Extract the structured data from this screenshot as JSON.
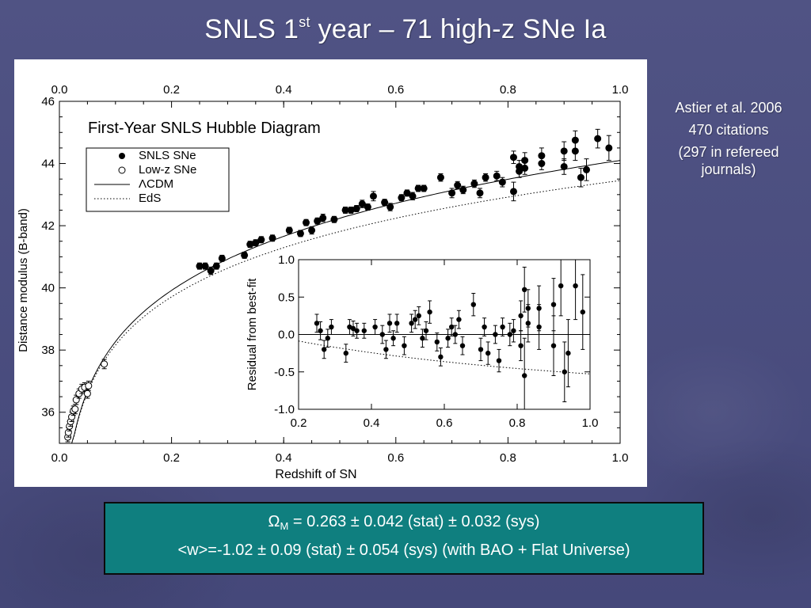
{
  "slide": {
    "title_main": "SNLS 1",
    "title_sup": "st",
    "title_rest": " year – 71 high-z SNe Ia"
  },
  "citation": {
    "line1": "Astier et al. 2006",
    "line2": "470 citations",
    "line3": "(297 in refereed journals)"
  },
  "results": {
    "omega_symbol": "Ω",
    "omega_sub": "M",
    "omega_value": " = 0.263 ± 0.042 (stat) ± 0.032 (sys)",
    "w_line": "<w>=-1.02 ± 0.09 (stat) ± 0.054 (sys) (with BAO + Flat Universe)"
  },
  "colors": {
    "background": "#4a4d80",
    "result_box": "#0f7f7f",
    "marker": "#000000"
  },
  "chart_data": [
    {
      "type": "scatter",
      "title": "First-Year SNLS Hubble Diagram",
      "xlabel": "Redshift of SN",
      "ylabel": "Distance modulus (B-band)",
      "xlim": [
        0.0,
        1.0
      ],
      "ylim": [
        35,
        46
      ],
      "xticks": [
        "0.0",
        "0.2",
        "0.4",
        "0.6",
        "0.8",
        "1.0"
      ],
      "yticks": [
        "36",
        "38",
        "40",
        "42",
        "44",
        "46"
      ],
      "legend_position": "top-left",
      "legend": [
        "SNLS SNe",
        "Low-z SNe",
        "ΛCDM",
        "EdS"
      ],
      "series": [
        {
          "name": "SNLS SNe",
          "marker": "filled-circle",
          "points": [
            [
              0.25,
              40.7,
              0.1
            ],
            [
              0.26,
              40.7,
              0.1
            ],
            [
              0.27,
              40.55,
              0.12
            ],
            [
              0.28,
              40.7,
              0.1
            ],
            [
              0.29,
              40.95,
              0.1
            ],
            [
              0.33,
              41.05,
              0.1
            ],
            [
              0.34,
              41.4,
              0.1
            ],
            [
              0.35,
              41.45,
              0.1
            ],
            [
              0.36,
              41.55,
              0.1
            ],
            [
              0.38,
              41.6,
              0.1
            ],
            [
              0.41,
              41.85,
              0.1
            ],
            [
              0.43,
              41.75,
              0.1
            ],
            [
              0.44,
              42.1,
              0.1
            ],
            [
              0.45,
              41.85,
              0.12
            ],
            [
              0.46,
              42.15,
              0.1
            ],
            [
              0.47,
              42.25,
              0.12
            ],
            [
              0.49,
              42.2,
              0.1
            ],
            [
              0.51,
              42.5,
              0.1
            ],
            [
              0.52,
              42.5,
              0.1
            ],
            [
              0.53,
              42.55,
              0.1
            ],
            [
              0.54,
              42.7,
              0.12
            ],
            [
              0.55,
              42.6,
              0.1
            ],
            [
              0.56,
              42.95,
              0.15
            ],
            [
              0.58,
              42.75,
              0.1
            ],
            [
              0.59,
              42.6,
              0.12
            ],
            [
              0.61,
              42.9,
              0.1
            ],
            [
              0.62,
              43.05,
              0.1
            ],
            [
              0.63,
              42.95,
              0.12
            ],
            [
              0.64,
              43.2,
              0.1
            ],
            [
              0.65,
              43.2,
              0.1
            ],
            [
              0.68,
              43.55,
              0.12
            ],
            [
              0.7,
              43.05,
              0.15
            ],
            [
              0.71,
              43.3,
              0.12
            ],
            [
              0.72,
              43.15,
              0.12
            ],
            [
              0.74,
              43.35,
              0.12
            ],
            [
              0.75,
              43.05,
              0.15
            ],
            [
              0.76,
              43.55,
              0.12
            ],
            [
              0.78,
              43.6,
              0.15
            ],
            [
              0.79,
              43.4,
              0.15
            ],
            [
              0.81,
              43.1,
              0.3
            ],
            [
              0.81,
              44.2,
              0.2
            ],
            [
              0.82,
              43.9,
              0.2
            ],
            [
              0.82,
              43.75,
              0.2
            ],
            [
              0.83,
              43.85,
              0.2
            ],
            [
              0.83,
              44.1,
              0.25
            ],
            [
              0.86,
              44.0,
              0.2
            ],
            [
              0.86,
              44.25,
              0.25
            ],
            [
              0.9,
              43.9,
              0.25
            ],
            [
              0.9,
              44.4,
              0.3
            ],
            [
              0.92,
              44.75,
              0.3
            ],
            [
              0.92,
              44.4,
              0.3
            ],
            [
              0.93,
              43.55,
              0.3
            ],
            [
              0.94,
              43.8,
              0.35
            ],
            [
              0.96,
              44.8,
              0.3
            ],
            [
              0.98,
              44.5,
              0.4
            ]
          ]
        },
        {
          "name": "Low-z SNe",
          "marker": "open-circle",
          "points": [
            [
              0.015,
              35.2,
              0.15
            ],
            [
              0.016,
              35.35,
              0.15
            ],
            [
              0.018,
              35.55,
              0.15
            ],
            [
              0.02,
              35.7,
              0.15
            ],
            [
              0.022,
              35.85,
              0.15
            ],
            [
              0.025,
              36.05,
              0.15
            ],
            [
              0.028,
              36.1,
              0.15
            ],
            [
              0.03,
              36.4,
              0.15
            ],
            [
              0.035,
              36.6,
              0.15
            ],
            [
              0.04,
              36.75,
              0.15
            ],
            [
              0.045,
              36.8,
              0.15
            ],
            [
              0.05,
              36.6,
              0.15
            ],
            [
              0.052,
              36.85,
              0.15
            ],
            [
              0.08,
              37.55,
              0.15
            ]
          ]
        }
      ],
      "curves": [
        {
          "name": "ΛCDM",
          "style": "solid",
          "omega_m": 0.263,
          "omega_l": 0.737
        },
        {
          "name": "EdS",
          "style": "dotted",
          "omega_m": 1.0,
          "omega_l": 0.0
        }
      ]
    },
    {
      "type": "scatter",
      "title": "",
      "xlabel": "",
      "ylabel": "Residual from best-fit",
      "xlim": [
        0.2,
        1.0
      ],
      "ylim": [
        -1.0,
        1.0
      ],
      "xticks": [
        "0.2",
        "0.4",
        "0.6",
        "0.8",
        "1.0"
      ],
      "yticks": [
        "-1.0",
        "-0.5",
        "0.0",
        "0.5",
        "1.0"
      ],
      "series": [
        {
          "name": "SNLS SNe",
          "marker": "filled-circle",
          "points": [
            [
              0.25,
              0.15,
              0.12
            ],
            [
              0.26,
              0.05,
              0.12
            ],
            [
              0.27,
              -0.2,
              0.12
            ],
            [
              0.28,
              -0.05,
              0.12
            ],
            [
              0.29,
              0.1,
              0.1
            ],
            [
              0.33,
              -0.25,
              0.12
            ],
            [
              0.34,
              0.1,
              0.1
            ],
            [
              0.35,
              0.08,
              0.1
            ],
            [
              0.36,
              0.05,
              0.1
            ],
            [
              0.38,
              0.05,
              0.1
            ],
            [
              0.41,
              0.1,
              0.1
            ],
            [
              0.43,
              0.0,
              0.12
            ],
            [
              0.44,
              -0.2,
              0.12
            ],
            [
              0.45,
              0.15,
              0.12
            ],
            [
              0.46,
              -0.05,
              0.1
            ],
            [
              0.47,
              0.15,
              0.12
            ],
            [
              0.49,
              -0.15,
              0.12
            ],
            [
              0.51,
              0.15,
              0.12
            ],
            [
              0.52,
              0.2,
              0.12
            ],
            [
              0.53,
              0.25,
              0.12
            ],
            [
              0.54,
              -0.05,
              0.12
            ],
            [
              0.55,
              0.05,
              0.12
            ],
            [
              0.56,
              0.3,
              0.15
            ],
            [
              0.58,
              -0.1,
              0.12
            ],
            [
              0.59,
              -0.3,
              0.12
            ],
            [
              0.61,
              -0.05,
              0.12
            ],
            [
              0.62,
              0.1,
              0.12
            ],
            [
              0.63,
              0.0,
              0.12
            ],
            [
              0.64,
              0.2,
              0.12
            ],
            [
              0.65,
              -0.15,
              0.12
            ],
            [
              0.68,
              0.4,
              0.15
            ],
            [
              0.7,
              -0.2,
              0.15
            ],
            [
              0.71,
              0.1,
              0.12
            ],
            [
              0.72,
              -0.25,
              0.15
            ],
            [
              0.74,
              0.0,
              0.12
            ],
            [
              0.75,
              -0.35,
              0.15
            ],
            [
              0.76,
              0.1,
              0.12
            ],
            [
              0.78,
              0.0,
              0.15
            ],
            [
              0.79,
              0.05,
              0.15
            ],
            [
              0.81,
              -0.15,
              0.2
            ],
            [
              0.81,
              0.25,
              0.2
            ],
            [
              0.82,
              -0.55,
              0.5
            ],
            [
              0.82,
              0.6,
              0.3
            ],
            [
              0.83,
              0.35,
              0.25
            ],
            [
              0.83,
              0.15,
              0.25
            ],
            [
              0.86,
              0.35,
              0.3
            ],
            [
              0.86,
              0.1,
              0.3
            ],
            [
              0.9,
              0.4,
              0.35
            ],
            [
              0.9,
              -0.15,
              0.4
            ],
            [
              0.92,
              0.65,
              0.4
            ],
            [
              0.93,
              -0.5,
              0.4
            ],
            [
              0.94,
              -0.25,
              0.45
            ],
            [
              0.96,
              0.65,
              0.45
            ],
            [
              0.98,
              0.3,
              0.5
            ]
          ]
        }
      ],
      "curves": [
        {
          "name": "ΛCDM",
          "style": "solid",
          "values": "zero"
        },
        {
          "name": "EdS",
          "style": "dotted",
          "omega_m": 1.0,
          "omega_l": 0.0
        }
      ]
    }
  ]
}
